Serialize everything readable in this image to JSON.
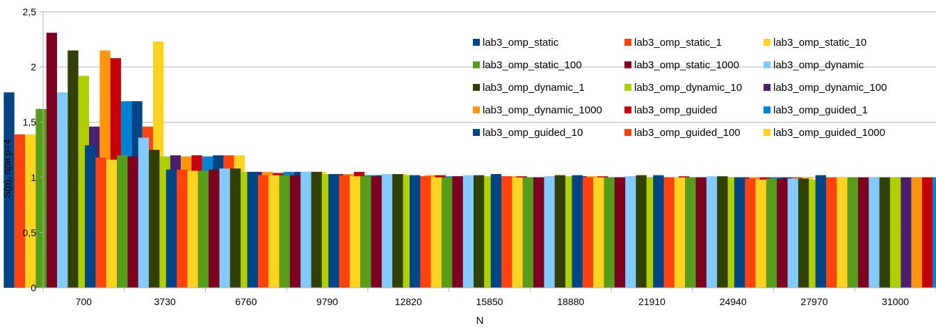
{
  "chart_data": {
    "type": "bar",
    "xlabel": "N",
    "ylabel": "S(p), при p=4",
    "ylim": [
      0,
      2.5
    ],
    "yticks": [
      "0",
      "0,5",
      "1",
      "1,5",
      "2",
      "2,5"
    ],
    "grid": true,
    "legend_position": "top-right",
    "categories": [
      "700",
      "3730",
      "6760",
      "9790",
      "12820",
      "15850",
      "18880",
      "21910",
      "24940",
      "27970",
      "31000"
    ],
    "series": [
      {
        "name": "lab3_omp_static",
        "color": "#004586",
        "values": [
          1.77,
          1.29,
          1.07,
          1.05,
          1.03,
          1.02,
          1.03,
          1.02,
          1.02,
          1.0,
          1.02
        ]
      },
      {
        "name": "lab3_omp_static_1",
        "color": "#ff420e",
        "values": [
          1.39,
          1.18,
          1.07,
          1.02,
          1.02,
          1.01,
          1.01,
          1.0,
          1.0,
          0.99,
          1.0
        ]
      },
      {
        "name": "lab3_omp_static_10",
        "color": "#ffd320",
        "values": [
          1.39,
          1.16,
          1.06,
          1.02,
          1.01,
          1.0,
          1.0,
          1.0,
          1.0,
          0.98,
          1.0
        ]
      },
      {
        "name": "lab3_omp_static_100",
        "color": "#579d1c",
        "values": [
          1.62,
          1.2,
          1.06,
          1.02,
          1.01,
          1.0,
          1.0,
          1.0,
          1.0,
          0.99,
          1.0
        ]
      },
      {
        "name": "lab3_omp_static_1000",
        "color": "#7e0021",
        "values": [
          2.31,
          1.19,
          1.07,
          1.02,
          1.01,
          1.01,
          1.0,
          1.0,
          1.0,
          0.99,
          1.0
        ]
      },
      {
        "name": "lab3_omp_dynamic",
        "color": "#83caff",
        "values": [
          1.77,
          1.36,
          1.08,
          1.05,
          1.03,
          1.02,
          1.01,
          1.01,
          1.01,
          0.99,
          1.0
        ]
      },
      {
        "name": "lab3_omp_dynamic_1",
        "color": "#314004",
        "values": [
          2.15,
          1.25,
          1.08,
          1.05,
          1.03,
          1.02,
          1.02,
          1.02,
          1.01,
          0.99,
          1.0
        ]
      },
      {
        "name": "lab3_omp_dynamic_10",
        "color": "#aecf00",
        "values": [
          1.92,
          1.19,
          1.05,
          1.03,
          1.02,
          1.01,
          1.01,
          1.0,
          1.0,
          0.98,
          1.0
        ]
      },
      {
        "name": "lab3_omp_dynamic_100",
        "color": "#4b1f6f",
        "values": [
          1.46,
          1.2,
          1.05,
          1.03,
          1.01,
          1.01,
          1.01,
          1.0,
          1.0,
          0.98,
          1.0
        ]
      },
      {
        "name": "lab3_omp_dynamic_1000",
        "color": "#ff950e",
        "values": [
          2.15,
          1.19,
          1.05,
          1.03,
          1.02,
          1.01,
          1.01,
          1.0,
          1.0,
          0.98,
          1.0
        ]
      },
      {
        "name": "lab3_omp_guided",
        "color": "#c5000b",
        "values": [
          2.08,
          1.2,
          1.04,
          1.05,
          1.02,
          1.01,
          1.01,
          1.01,
          1.0,
          0.98,
          1.0
        ]
      },
      {
        "name": "lab3_omp_guided_1",
        "color": "#0084d1",
        "values": [
          1.69,
          1.19,
          1.05,
          1.02,
          1.01,
          1.0,
          1.0,
          1.0,
          1.0,
          0.98,
          1.0
        ]
      },
      {
        "name": "lab3_omp_guided_10",
        "color": "#004586",
        "values": [
          1.69,
          1.2,
          1.05,
          1.02,
          1.01,
          1.0,
          1.0,
          1.0,
          1.0,
          0.98,
          1.0
        ]
      },
      {
        "name": "lab3_omp_guided_100",
        "color": "#ff420e",
        "values": [
          1.46,
          1.2,
          1.05,
          1.03,
          1.01,
          1.01,
          1.01,
          1.0,
          1.0,
          0.98,
          1.0
        ]
      },
      {
        "name": "lab3_omp_guided_1000",
        "color": "#ffd320",
        "values": [
          2.23,
          1.2,
          1.05,
          1.03,
          1.01,
          1.01,
          1.0,
          1.0,
          1.0,
          0.98,
          1.0
        ]
      }
    ]
  }
}
